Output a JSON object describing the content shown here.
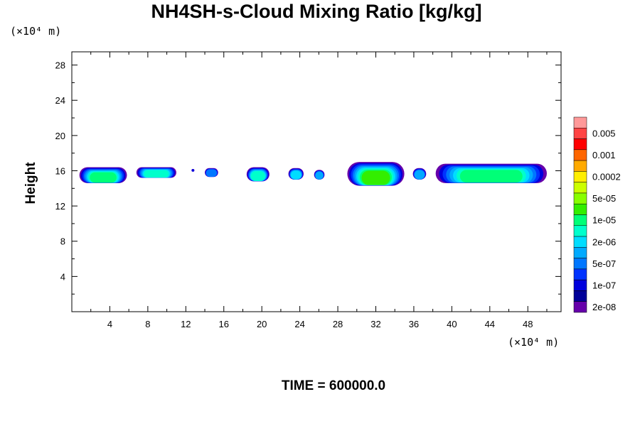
{
  "chart_data": {
    "type": "heatmap",
    "title": "NH4SH-s-Cloud Mixing Ratio [kg/kg]",
    "xlabel": "",
    "ylabel": "Height",
    "x_unit": "(×10⁴ m)",
    "y_unit": "(×10⁴ m)",
    "xlim": [
      0,
      51.5
    ],
    "ylim": [
      0,
      29.5
    ],
    "x_ticks": [
      4,
      8,
      12,
      16,
      20,
      24,
      28,
      32,
      36,
      40,
      44,
      48
    ],
    "y_ticks": [
      4,
      8,
      12,
      16,
      20,
      24,
      28
    ],
    "footer": "TIME = 600000.0",
    "colorbar": {
      "labels": [
        "0.005",
        "0.001",
        "0.0002",
        "5e-05",
        "1e-05",
        "2e-06",
        "5e-07",
        "1e-07",
        "2e-08"
      ],
      "colors": [
        "#ff9999",
        "#ff4444",
        "#ff0000",
        "#ff6600",
        "#ffaa00",
        "#ffee00",
        "#ccff00",
        "#88ff00",
        "#33ee00",
        "#00ff77",
        "#00ffcc",
        "#00ddff",
        "#00aaff",
        "#0077ff",
        "#0033ff",
        "#0000dd",
        "#000099",
        "#6600aa"
      ]
    },
    "cloud_patches": [
      {
        "x0": 0.8,
        "x1": 5.8,
        "y_bottom": 14.6,
        "y_top": 16.4,
        "peak": 0.65
      },
      {
        "x0": 6.8,
        "x1": 11.0,
        "y_bottom": 15.2,
        "y_top": 16.4,
        "peak": 0.55
      },
      {
        "x0": 12.6,
        "x1": 12.9,
        "y_bottom": 15.9,
        "y_top": 16.2,
        "peak": 0.1
      },
      {
        "x0": 14.0,
        "x1": 15.4,
        "y_bottom": 15.3,
        "y_top": 16.3,
        "peak": 0.35
      },
      {
        "x0": 18.4,
        "x1": 20.8,
        "y_bottom": 14.8,
        "y_top": 16.4,
        "peak": 0.55
      },
      {
        "x0": 22.8,
        "x1": 24.4,
        "y_bottom": 15.0,
        "y_top": 16.3,
        "peak": 0.5
      },
      {
        "x0": 25.5,
        "x1": 26.6,
        "y_bottom": 15.0,
        "y_top": 16.1,
        "peak": 0.45
      },
      {
        "x0": 29.0,
        "x1": 35.0,
        "y_bottom": 14.3,
        "y_top": 17.0,
        "peak": 0.72
      },
      {
        "x0": 35.9,
        "x1": 37.3,
        "y_bottom": 15.0,
        "y_top": 16.3,
        "peak": 0.45
      },
      {
        "x0": 38.3,
        "x1": 50.0,
        "y_bottom": 14.6,
        "y_top": 16.8,
        "peak": 0.7
      }
    ]
  }
}
